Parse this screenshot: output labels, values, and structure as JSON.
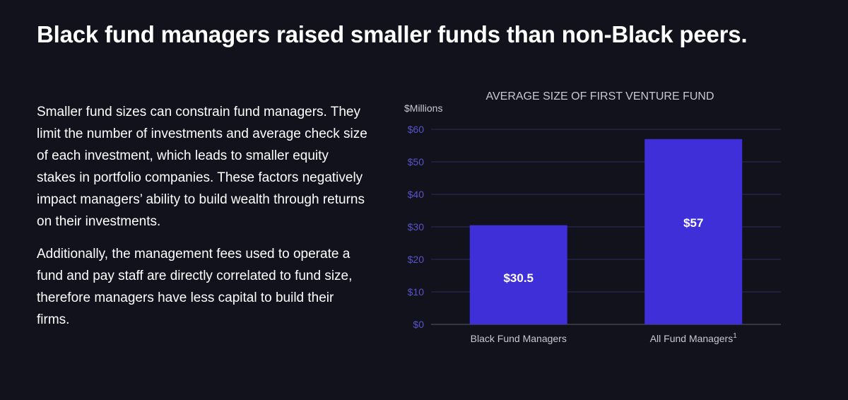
{
  "headline": "Black fund managers raised smaller funds than non-Black peers.",
  "body": {
    "paragraphs": [
      "Smaller fund sizes can constrain fund managers. They limit the number of investments and average check size of each investment, which leads to smaller equity stakes in portfolio companies. These factors negatively impact managers’ ability to build wealth through returns on their investments.",
      "Additionally, the management fees used to operate a fund and pay staff are directly correlated to fund size, therefore managers have less capital to build their firms."
    ]
  },
  "colors": {
    "background": "#11121c",
    "bar": "#3f2fd8",
    "grid": "#2a2a5e",
    "tick": "#5a52c8",
    "axis_text": "#c8c8d2"
  },
  "chart_data": {
    "type": "bar",
    "title": "AVERAGE SIZE OF FIRST VENTURE FUND",
    "ylabel": "$Millions",
    "xlabel": "",
    "categories": [
      "Black Fund Managers",
      "All Fund Managers"
    ],
    "category_superscripts": [
      "",
      "1"
    ],
    "values": [
      30.5,
      57
    ],
    "value_labels": [
      "$30.5",
      "$57"
    ],
    "ylim": [
      0,
      60
    ],
    "yticks": [
      0,
      10,
      20,
      30,
      40,
      50,
      60
    ],
    "ytick_labels": [
      "$0",
      "$10",
      "$20",
      "$30",
      "$40",
      "$50",
      "$60"
    ],
    "grid": true
  }
}
